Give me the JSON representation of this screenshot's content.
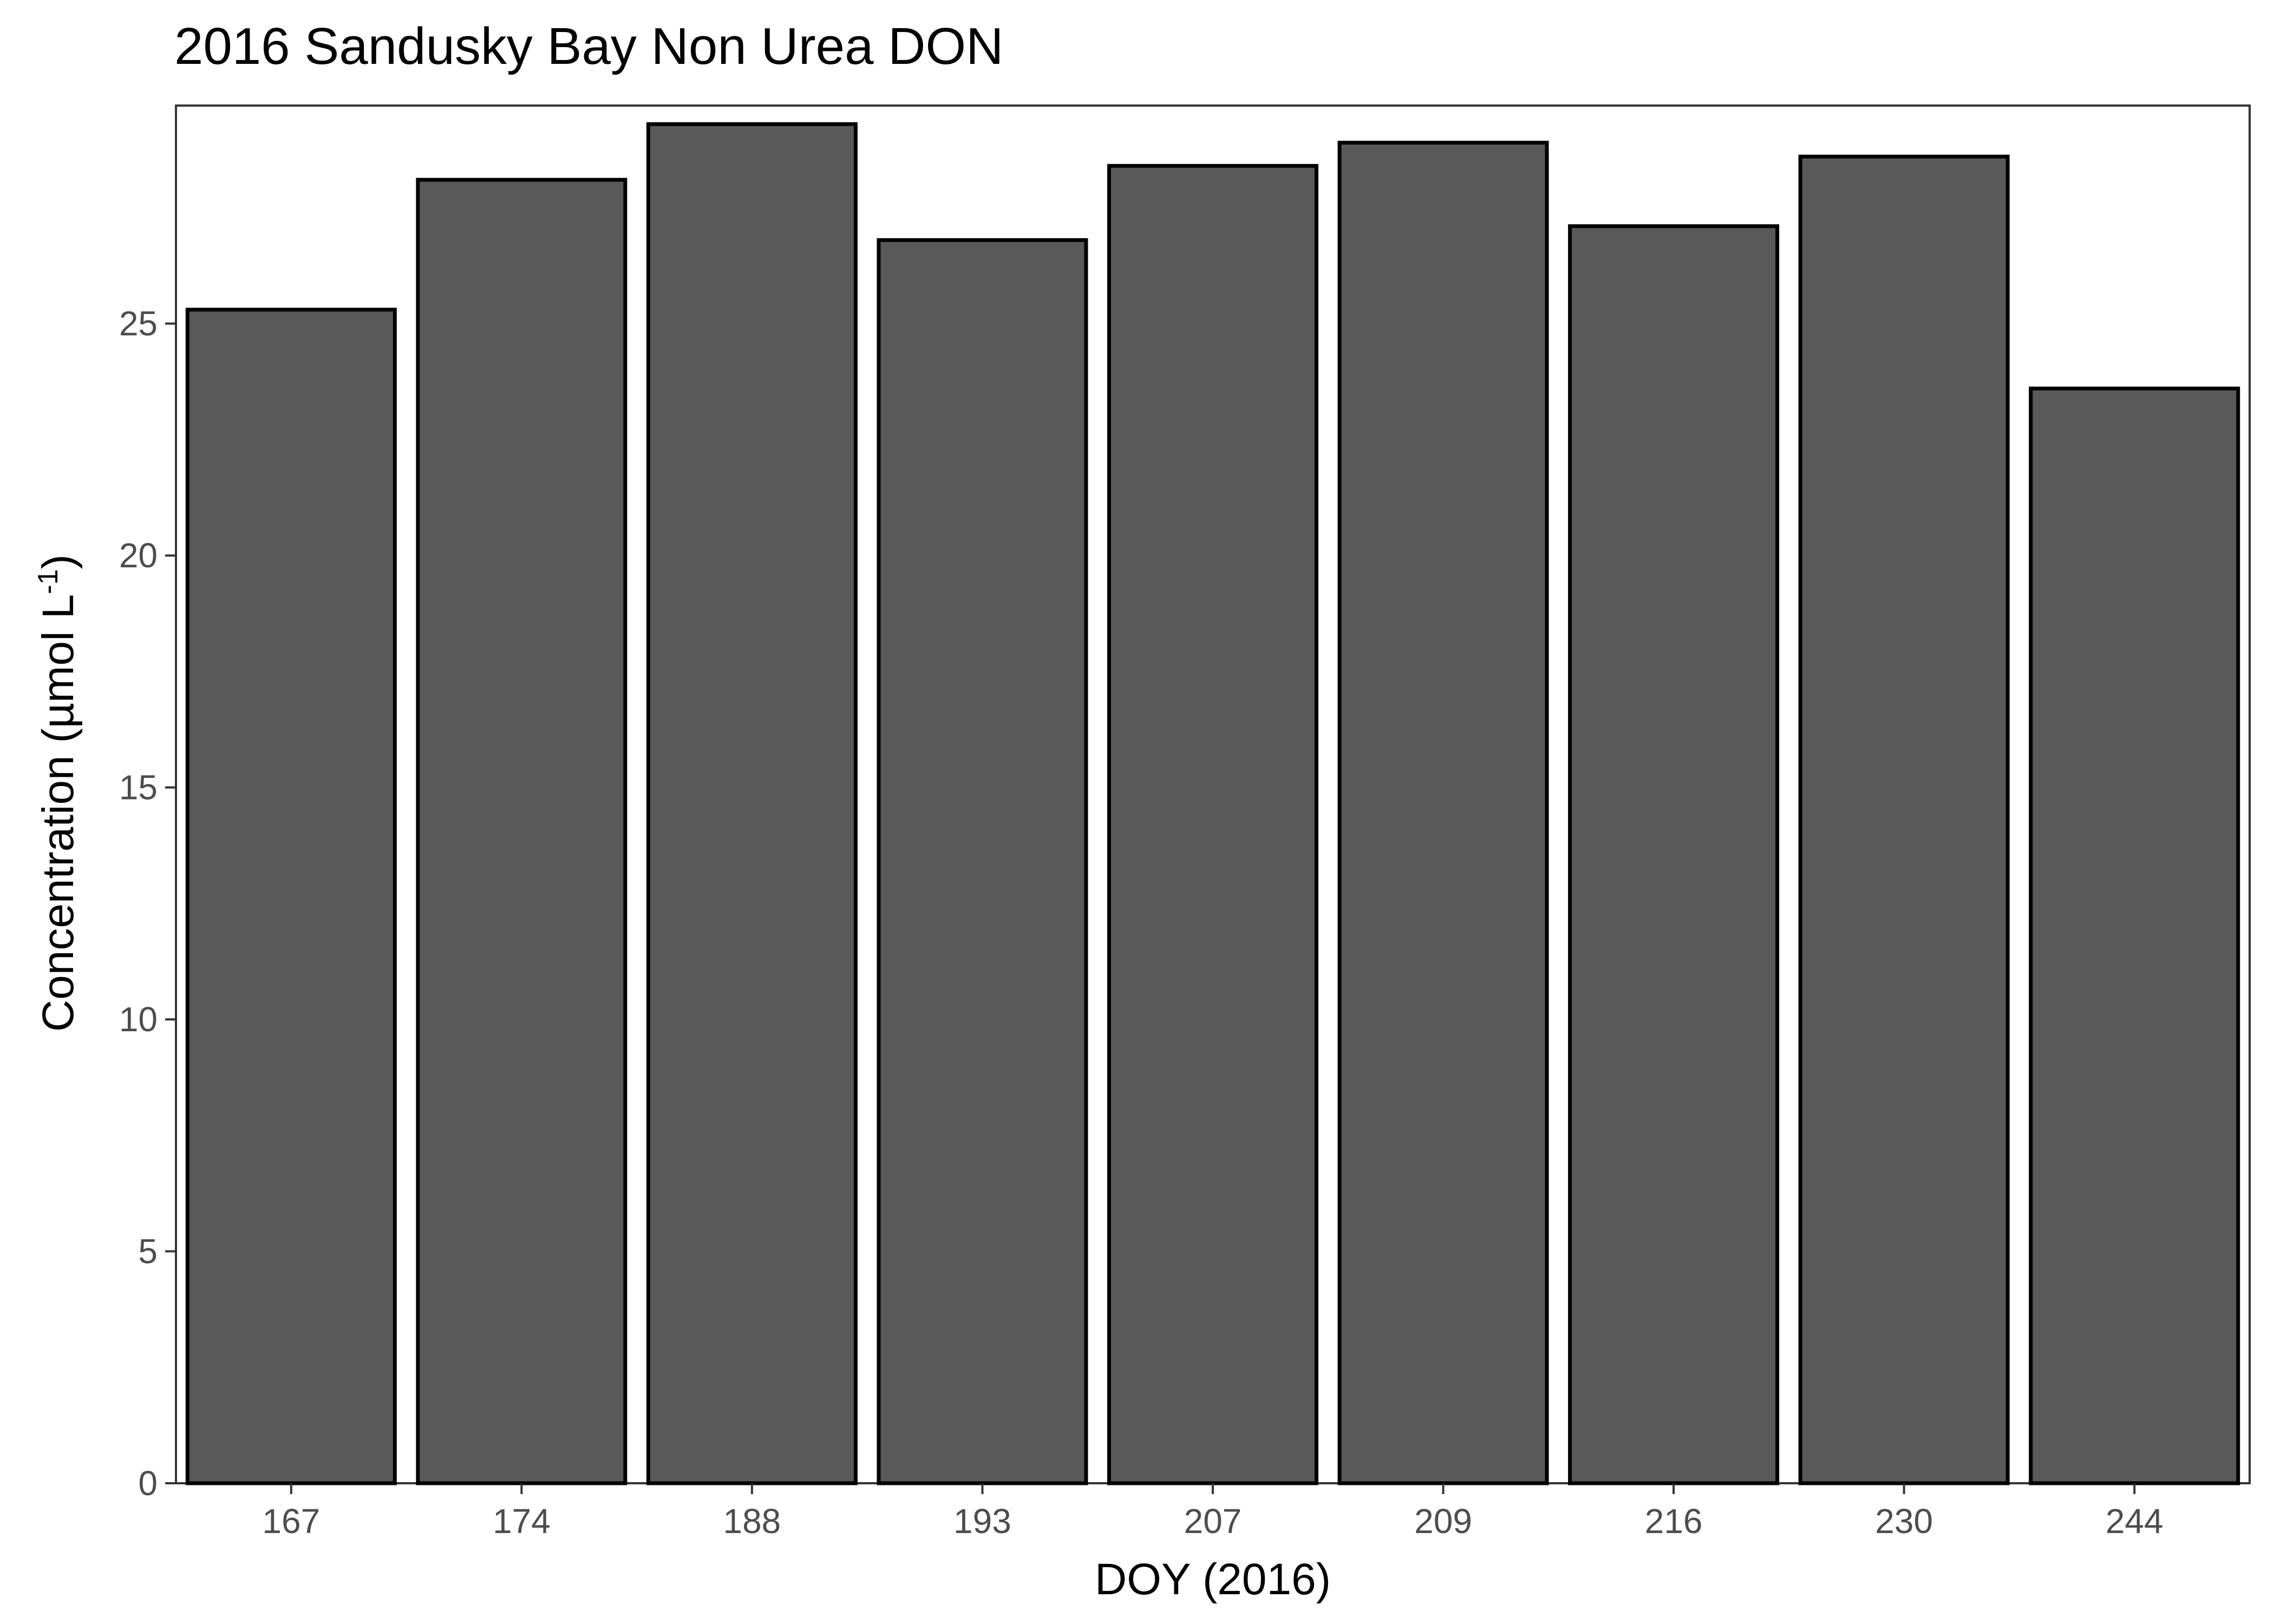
{
  "chart_data": {
    "type": "bar",
    "title": "2016 Sandusky Bay Non Urea DON",
    "xlabel": "DOY (2016)",
    "ylabel": {
      "main": "Concentration (µmol L",
      "sup": "-1",
      "close": ")"
    },
    "categories": [
      "167",
      "174",
      "188",
      "193",
      "207",
      "209",
      "216",
      "230",
      "244"
    ],
    "values": [
      25.3,
      28.1,
      29.3,
      26.8,
      28.4,
      28.9,
      27.1,
      28.6,
      23.6
    ],
    "ylim": [
      0,
      29.7
    ],
    "yticks": [
      0,
      5,
      10,
      15,
      20,
      25
    ],
    "grid": false,
    "legend": "none",
    "colors": {
      "bar_fill": "#595959",
      "bar_stroke": "#000000",
      "panel_border": "#333333"
    }
  }
}
